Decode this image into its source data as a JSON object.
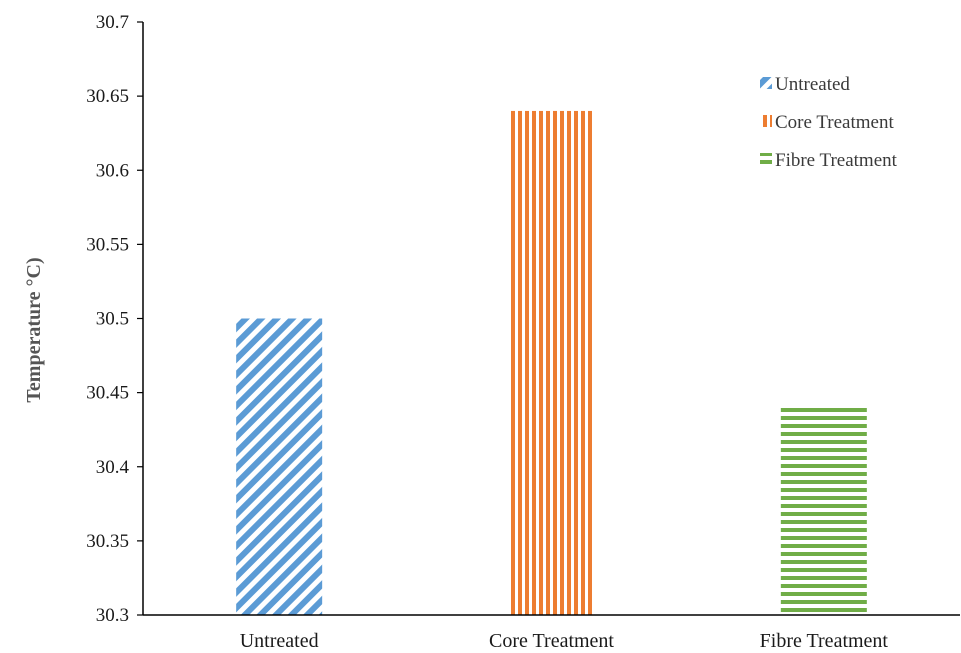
{
  "chart_data": {
    "type": "bar",
    "title": "",
    "xlabel": "",
    "ylabel": "Temperature °C)",
    "categories": [
      "Untreated",
      "Core Treatment",
      "Fibre Treatment"
    ],
    "series": [
      {
        "name": "Untreated",
        "category": "Untreated",
        "value": 30.5,
        "color": "#5b9bd5",
        "pattern": "diagonal-stripes"
      },
      {
        "name": "Core Treatment",
        "category": "Core Treatment",
        "value": 30.64,
        "color": "#ed7d31",
        "pattern": "vertical-stripes"
      },
      {
        "name": "Fibre Treatment",
        "category": "Fibre Treatment",
        "value": 30.44,
        "color": "#70ad47",
        "pattern": "horizontal-stripes"
      }
    ],
    "ylim": [
      30.3,
      30.7
    ],
    "yticks": [
      "30.3",
      "30.35",
      "30.4",
      "30.45",
      "30.5",
      "30.55",
      "30.6",
      "30.65",
      "30.7"
    ],
    "grid": false,
    "legend_position": "top-right"
  }
}
